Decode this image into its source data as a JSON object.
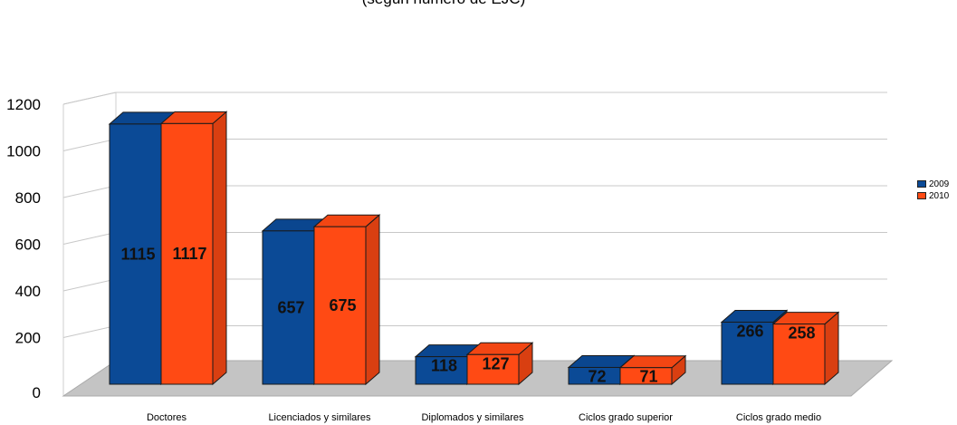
{
  "chart_data": {
    "type": "bar",
    "title": "(según número de EJC)",
    "categories": [
      "Doctores",
      "Licenciados y similares",
      "Diplomados y similares",
      "Ciclos grado superior",
      "Ciclos grado medio"
    ],
    "series": [
      {
        "name": "2009",
        "values": [
          1115,
          657,
          118,
          72,
          266
        ],
        "color": "#0b4a96"
      },
      {
        "name": "2010",
        "values": [
          1117,
          675,
          127,
          71,
          258
        ],
        "color": "#ff4a14"
      }
    ],
    "yticks": [
      0,
      200,
      400,
      600,
      800,
      1000,
      1200
    ],
    "ylim": [
      0,
      1200
    ],
    "grid": true,
    "legend_position": "right",
    "three_d": true
  }
}
